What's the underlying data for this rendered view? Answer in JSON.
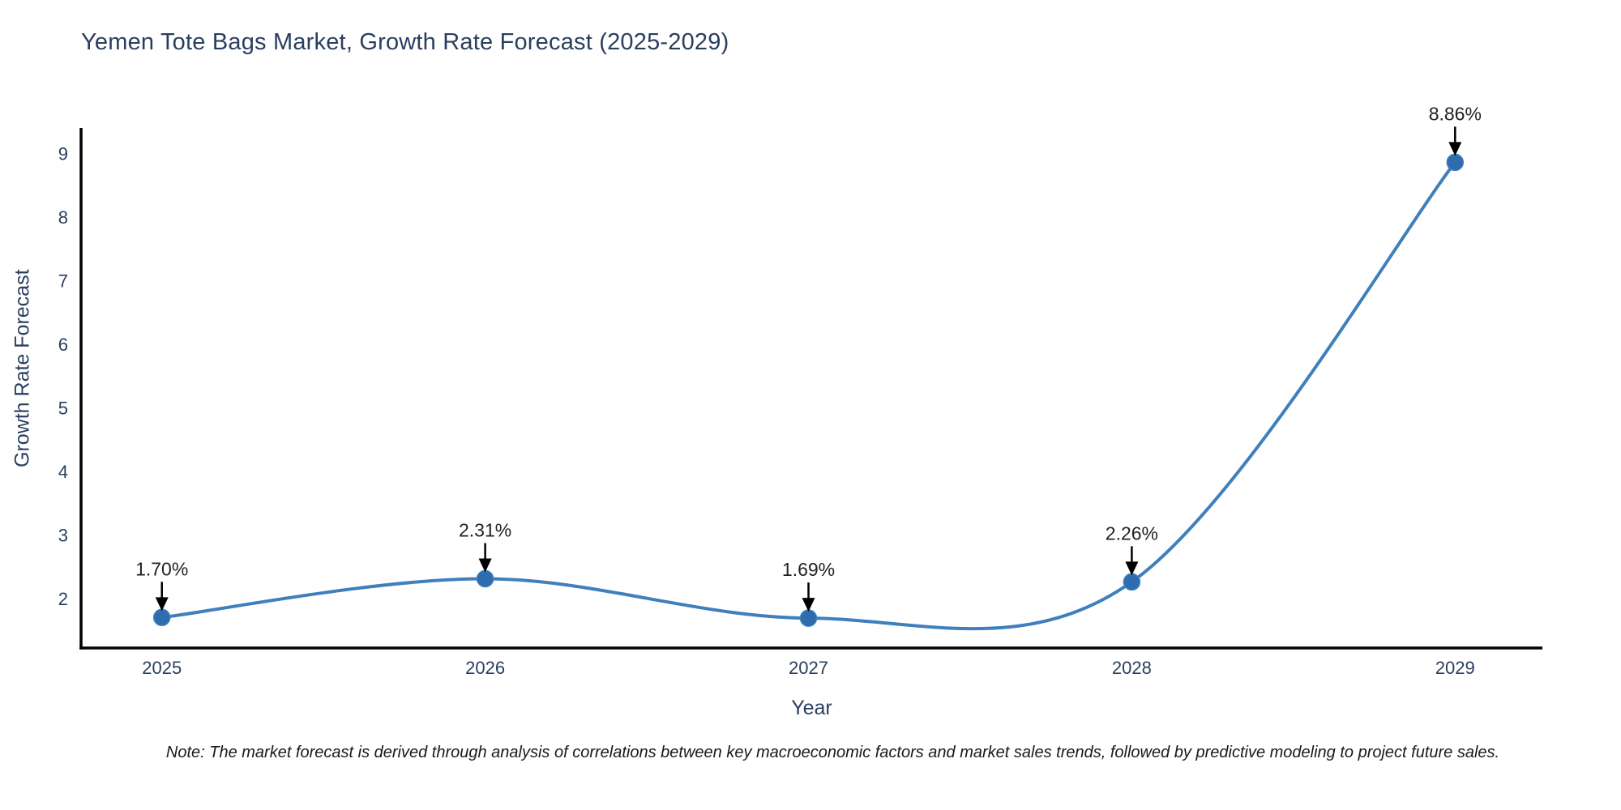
{
  "chart_data": {
    "type": "line",
    "title": "Yemen Tote Bags Market, Growth Rate Forecast (2025-2029)",
    "xlabel": "Year",
    "ylabel": "Growth Rate Forecast",
    "x": [
      2025,
      2026,
      2027,
      2028,
      2029
    ],
    "values": [
      1.7,
      2.31,
      1.69,
      2.26,
      8.86
    ],
    "point_labels": [
      "1.70%",
      "2.31%",
      "1.69%",
      "2.26%",
      "8.86%"
    ],
    "xticks": [
      "2025",
      "2026",
      "2027",
      "2028",
      "2029"
    ],
    "yticks": [
      2,
      3,
      4,
      5,
      6,
      7,
      8,
      9
    ],
    "xlim": [
      2024.75,
      2029.27
    ],
    "ylim": [
      1.22,
      9.4
    ],
    "line_shape": "spline",
    "grid": false,
    "legend": false,
    "note": "Note: The market forecast is derived through analysis of correlations between key macroeconomic factors and market sales trends, followed by predictive modeling to project future sales.",
    "colors": {
      "line": "#3f7fbc",
      "marker": "#2e6cad",
      "axis": "#000000",
      "title": "#2a3f5f",
      "tick_label": "#2a3f5f",
      "annotation_text": "#222222",
      "arrow": "#000000",
      "background": "#ffffff"
    }
  }
}
